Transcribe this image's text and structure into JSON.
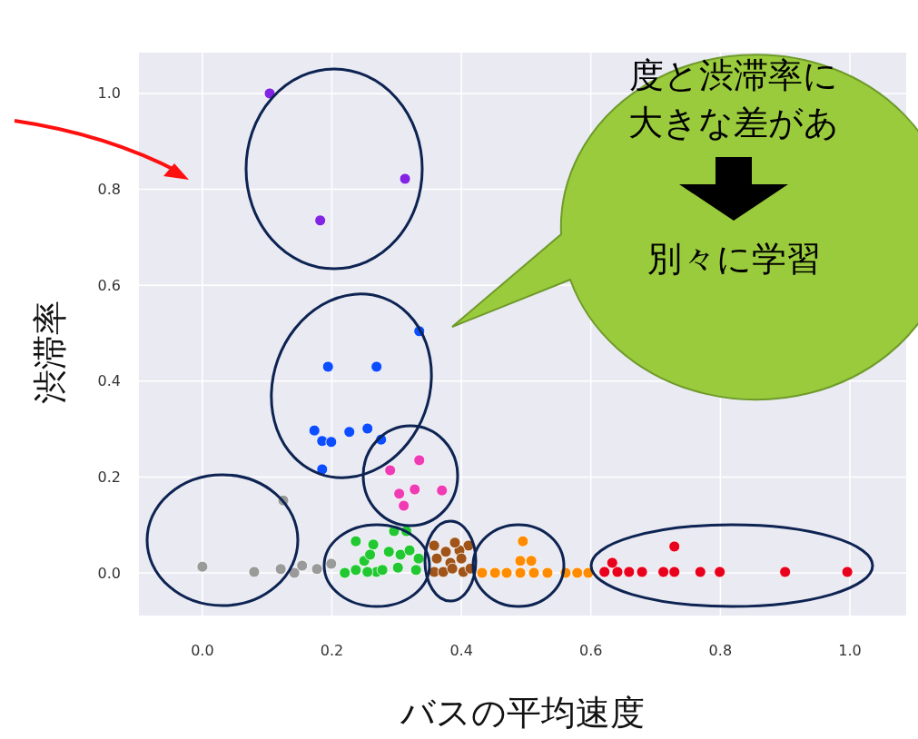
{
  "chart_data": {
    "type": "scatter",
    "xlabel": "バスの平均速度",
    "ylabel": "渋滞率",
    "annotations": [
      "度と渋滞率に",
      "大きな差があ",
      "別々に学習"
    ],
    "xlim": [
      -0.098,
      1.087
    ],
    "ylim": [
      -0.089,
      1.085
    ],
    "xticks": [
      {
        "value": 0,
        "label": "0.0"
      },
      {
        "value": 0.2,
        "label": "0.2"
      },
      {
        "value": 0.4,
        "label": "0.4"
      },
      {
        "value": 0.6,
        "label": "0.6"
      },
      {
        "value": 0.8,
        "label": "0.8"
      },
      {
        "value": 1,
        "label": "1.0"
      }
    ],
    "yticks": [
      {
        "value": 0,
        "label": "0.0"
      },
      {
        "value": 0.2,
        "label": "0.2"
      },
      {
        "value": 0.4,
        "label": "0.4"
      },
      {
        "value": 0.6,
        "label": "0.6"
      },
      {
        "value": 0.8,
        "label": "0.8"
      },
      {
        "value": 1,
        "label": "1.0"
      }
    ],
    "grid": true,
    "marker": "circle",
    "series": [
      {
        "color": "#8224e3",
        "x": [
          0.104,
          0.313,
          0.182
        ],
        "values": [
          1.0,
          0.822,
          0.735
        ]
      },
      {
        "color": "#0b4dff",
        "x": [
          0.335,
          0.194,
          0.269,
          0.173,
          0.185,
          0.199,
          0.227,
          0.255,
          0.276,
          0.185
        ],
        "values": [
          0.504,
          0.43,
          0.43,
          0.297,
          0.275,
          0.273,
          0.294,
          0.301,
          0.278,
          0.216
        ]
      },
      {
        "color": "#f03cb4",
        "x": [
          0.335,
          0.29,
          0.328,
          0.37,
          0.304,
          0.311
        ],
        "values": [
          0.235,
          0.214,
          0.174,
          0.172,
          0.165,
          0.14
        ]
      },
      {
        "color": "#9a9a9a",
        "x": [
          0.0,
          0.125,
          0.08,
          0.121,
          0.142,
          0.154,
          0.177,
          0.199
        ],
        "values": [
          0.013,
          0.151,
          0.002,
          0.008,
          0.0,
          0.015,
          0.008,
          0.019
        ]
      },
      {
        "color": "#22c832",
        "x": [
          0.22,
          0.237,
          0.237,
          0.264,
          0.25,
          0.259,
          0.269,
          0.288,
          0.296,
          0.315,
          0.302,
          0.306,
          0.32,
          0.33,
          0.334,
          0.278,
          0.255
        ],
        "values": [
          0.0,
          0.006,
          0.066,
          0.059,
          0.025,
          0.038,
          0.002,
          0.044,
          0.087,
          0.087,
          0.011,
          0.038,
          0.047,
          0.006,
          0.03,
          0.006,
          0.002
        ]
      },
      {
        "color": "#a0541a",
        "x": [
          0.358,
          0.376,
          0.411,
          0.397,
          0.362,
          0.383,
          0.4,
          0.358,
          0.372,
          0.403,
          0.386,
          0.414,
          0.39
        ],
        "values": [
          0.057,
          0.044,
          0.057,
          0.047,
          0.03,
          0.021,
          0.03,
          0.002,
          0.002,
          0.002,
          0.009,
          0.009,
          0.063
        ]
      },
      {
        "color": "#ff8c00",
        "x": [
          0.495,
          0.491,
          0.508,
          0.432,
          0.452,
          0.47,
          0.491,
          0.512,
          0.533,
          0.561,
          0.579,
          0.596
        ],
        "values": [
          0.066,
          0.025,
          0.025,
          0.0,
          0.0,
          0.0,
          0.0,
          0.0,
          0.0,
          0.0,
          0.0,
          0.0
        ]
      },
      {
        "color": "#e8001c",
        "x": [
          0.621,
          0.641,
          0.659,
          0.679,
          0.712,
          0.729,
          0.769,
          0.799,
          0.9,
          0.996,
          0.729,
          0.633
        ],
        "values": [
          0.002,
          0.002,
          0.002,
          0.002,
          0.002,
          0.002,
          0.002,
          0.002,
          0.002,
          0.002,
          0.055,
          0.021
        ]
      }
    ]
  }
}
